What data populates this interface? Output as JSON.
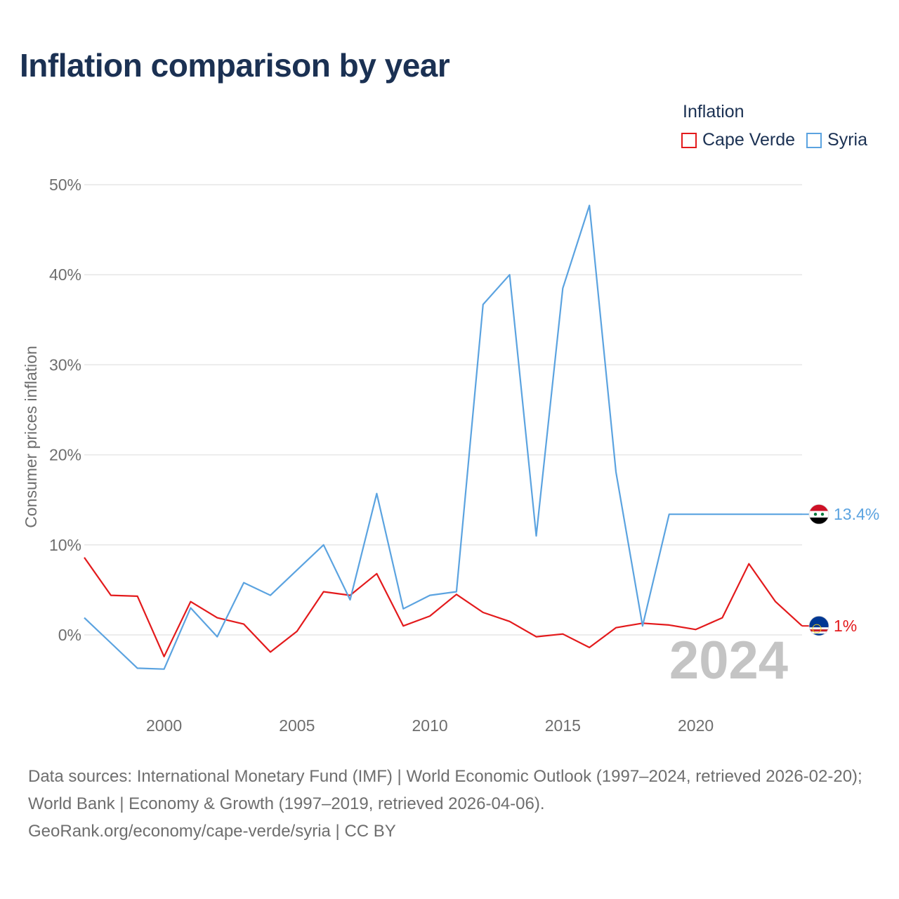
{
  "title": "Inflation comparison by year",
  "legend": {
    "title": "Inflation",
    "items": [
      {
        "name": "Cape Verde",
        "color": "#e31a1c"
      },
      {
        "name": "Syria",
        "color": "#5ba3e0"
      }
    ]
  },
  "chart_data": {
    "type": "line",
    "ylabel": "Consumer prices inflation",
    "ylim": [
      -8,
      52
    ],
    "xlim": [
      1997,
      2024
    ],
    "yticks": [
      0,
      10,
      20,
      30,
      40,
      50
    ],
    "ytick_labels": [
      "0%",
      "10%",
      "20%",
      "30%",
      "40%",
      "50%"
    ],
    "xticks": [
      2000,
      2005,
      2010,
      2015,
      2020
    ],
    "xtick_labels": [
      "2000",
      "2005",
      "2010",
      "2015",
      "2020"
    ],
    "year_watermark": "2024",
    "x": [
      1997,
      1998,
      1999,
      2000,
      2001,
      2002,
      2003,
      2004,
      2005,
      2006,
      2007,
      2008,
      2009,
      2010,
      2011,
      2012,
      2013,
      2014,
      2015,
      2016,
      2017,
      2018,
      2019,
      2020,
      2021,
      2022,
      2023,
      2024
    ],
    "series": [
      {
        "name": "Cape Verde",
        "color": "#e31a1c",
        "end_label": "1%",
        "flag": "cape-verde-flag-icon",
        "values": [
          8.6,
          4.4,
          4.3,
          -2.4,
          3.7,
          1.9,
          1.2,
          -1.9,
          0.4,
          4.8,
          4.4,
          6.8,
          1.0,
          2.1,
          4.5,
          2.5,
          1.5,
          -0.2,
          0.1,
          -1.4,
          0.8,
          1.3,
          1.1,
          0.6,
          1.9,
          7.9,
          3.7,
          1.0
        ]
      },
      {
        "name": "Syria",
        "color": "#5ba3e0",
        "end_label": "13.4%",
        "flag": "syria-flag-icon",
        "values": [
          1.9,
          -0.9,
          -3.7,
          -3.8,
          3.0,
          -0.2,
          5.8,
          4.4,
          7.2,
          10.0,
          3.9,
          15.7,
          2.9,
          4.4,
          4.8,
          36.7,
          40.0,
          11.0,
          38.5,
          47.7,
          18.1,
          1.0,
          13.4,
          13.4,
          13.4,
          13.4,
          13.4,
          13.4
        ]
      }
    ]
  },
  "footer": {
    "line1": "Data sources: International Monetary Fund (IMF) | World Economic Outlook (1997–2024, retrieved 2026-02-20); World Bank | Economy & Growth (1997–2019, retrieved 2026-04-06).",
    "line2": "GeoRank.org/economy/cape-verde/syria | CC BY"
  }
}
